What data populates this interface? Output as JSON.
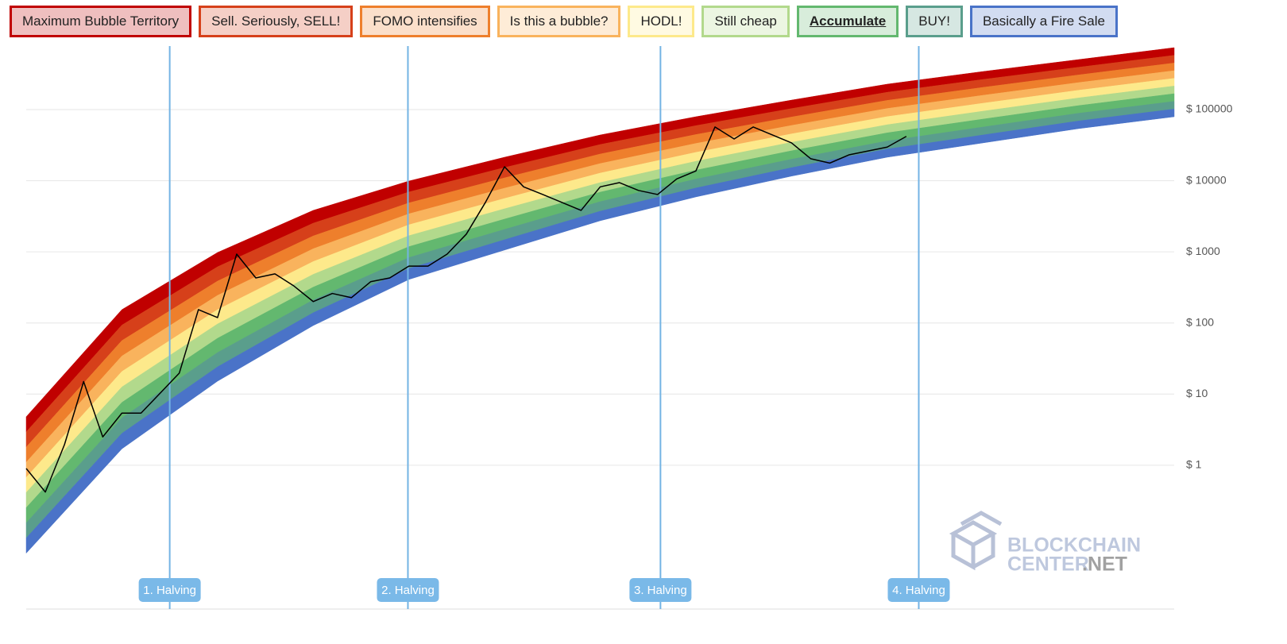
{
  "chart_data": {
    "type": "rainbow",
    "legend": [
      {
        "name": "Maximum Bubble Territory",
        "color": "#c00000"
      },
      {
        "name": "Sell. Seriously, SELL!",
        "color": "#d6401a"
      },
      {
        "name": "FOMO intensifies",
        "color": "#ee7f2c"
      },
      {
        "name": "Is this a bubble?",
        "color": "#f9b35d"
      },
      {
        "name": "HODL!",
        "color": "#fde98b"
      },
      {
        "name": "Still cheap",
        "color": "#b2d98c"
      },
      {
        "name": "Accumulate",
        "color": "#63b86f"
      },
      {
        "name": "BUY!",
        "color": "#5a9e8c"
      },
      {
        "name": "Basically a Fire Sale",
        "color": "#4a73c8"
      }
    ],
    "selected_legend": 6,
    "log_scale": true,
    "grid": true,
    "ylim": [
      0.0095,
      743000
    ],
    "yticks": [
      {
        "value": 1,
        "label": "$ 1"
      },
      {
        "value": 10,
        "label": "$ 10"
      },
      {
        "value": 100,
        "label": "$ 100"
      },
      {
        "value": 1000,
        "label": "$ 1000"
      },
      {
        "value": 10000,
        "label": "$ 10000"
      },
      {
        "value": 100000,
        "label": "$ 100000"
      }
    ],
    "rainbow_top": [
      4.8,
      154,
      980,
      3830,
      9900,
      21400,
      44000,
      79400,
      136000,
      228000,
      343000,
      505000,
      743000
    ],
    "rainbow_bottom": [
      0.058,
      1.7,
      15.2,
      92,
      409,
      1060,
      2740,
      5920,
      11600,
      21400,
      34000,
      54000,
      79400
    ],
    "series": [
      {
        "name": "price",
        "color": "#000000",
        "values": [
          0.9,
          0.42,
          1.95,
          15,
          2.5,
          5.4,
          5.4,
          10.3,
          19.7,
          154,
          119,
          930,
          430,
          490,
          330,
          200,
          260,
          227,
          380,
          430,
          630,
          630,
          930,
          1770,
          4950,
          15700,
          8200,
          6400,
          4950,
          3830,
          8200,
          9400,
          7300,
          6400,
          10600,
          13700,
          57000,
          38600,
          57000,
          44000,
          34000,
          20400,
          17700,
          23100,
          26200,
          29700,
          42000,
          null,
          null,
          null,
          null,
          null,
          null,
          null,
          null,
          null,
          null,
          null,
          null,
          null,
          null
        ]
      }
    ],
    "annotations": [
      "1. Halving",
      "2. Halving",
      "3. Halving",
      "4. Halving"
    ],
    "watermark": [
      "BLOCKCHAIN",
      "CENTER",
      ".NET"
    ]
  }
}
